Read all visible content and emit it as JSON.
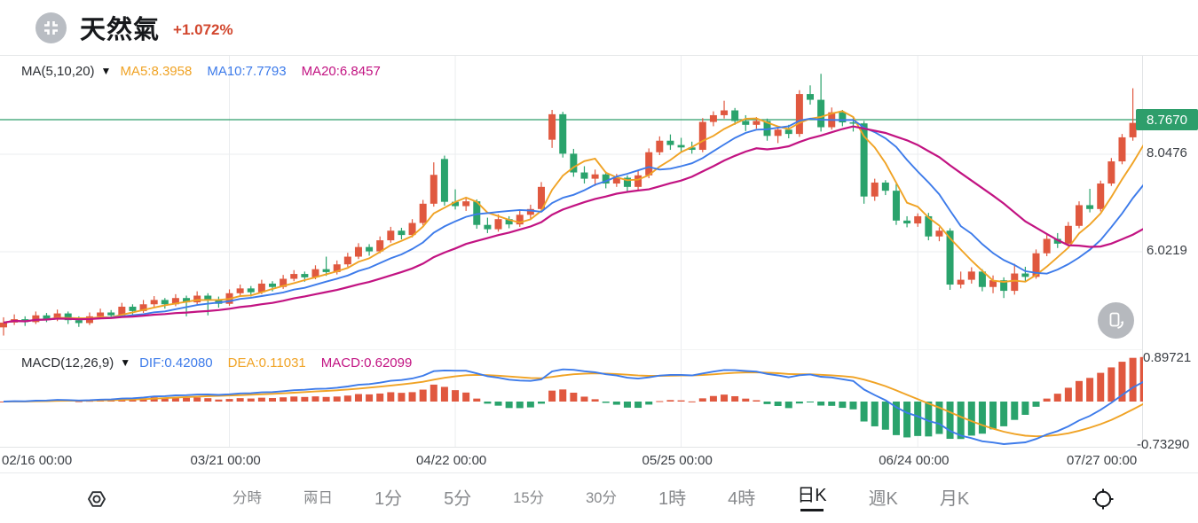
{
  "header": {
    "title": "天然氣",
    "change": "+1.072%",
    "symbol_icon": "crosshair-corners-icon"
  },
  "price_pane": {
    "ma_indicator": {
      "label": "MA(5,10,20)",
      "collapse_icon": "▼",
      "series": [
        {
          "name": "MA5",
          "value": "8.3958",
          "color": "#f0a325"
        },
        {
          "name": "MA10",
          "value": "7.7793",
          "color": "#3d7bea"
        },
        {
          "name": "MA20",
          "value": "6.8457",
          "color": "#c21382"
        }
      ]
    },
    "current_price": {
      "value": "8.7670",
      "badge_color": "#2e9e6b"
    },
    "axis_labels": [
      "8.0476",
      "6.0219"
    ]
  },
  "macd_pane": {
    "label": "MACD(12,26,9)",
    "collapse_icon": "▼",
    "series": [
      {
        "name": "DIF",
        "value": "0.42080",
        "color": "#3d7bea"
      },
      {
        "name": "DEA",
        "value": "0.11031",
        "color": "#f0a325"
      },
      {
        "name": "MACD",
        "value": "0.62099",
        "color": "#c21382"
      }
    ],
    "axis_top": "0.89721",
    "axis_bottom": "-0.73290"
  },
  "x_axis": {
    "labels": [
      "02/16 00:00",
      "03/21 00:00",
      "04/22 00:00",
      "05/25 00:00",
      "06/24 00:00",
      "07/27 00:00"
    ]
  },
  "toolbar": {
    "left_icon": "settings-hex-icon",
    "right_icon": "target-icon",
    "items": [
      {
        "label": "分時",
        "size": "sm",
        "active": false
      },
      {
        "label": "兩日",
        "size": "sm",
        "active": false
      },
      {
        "label": "1分",
        "size": "lg",
        "active": false
      },
      {
        "label": "5分",
        "size": "lg",
        "active": false
      },
      {
        "label": "15分",
        "size": "sm",
        "active": false
      },
      {
        "label": "30分",
        "size": "sm",
        "active": false
      },
      {
        "label": "1時",
        "size": "lg",
        "active": false
      },
      {
        "label": "4時",
        "size": "lg",
        "active": false
      },
      {
        "label": "日K",
        "size": "lg",
        "active": true
      },
      {
        "label": "週K",
        "size": "lg",
        "active": false
      },
      {
        "label": "月K",
        "size": "lg",
        "active": false
      }
    ]
  },
  "colors": {
    "up": "#e0583f",
    "down": "#2aa36c",
    "price_line": "#2e9e6b",
    "ma5": "#f0a325",
    "ma10": "#3d7bea",
    "ma20": "#c21382",
    "grid": "#ebedef",
    "border": "#e2e4e6",
    "change_text": "#d2472e"
  },
  "chart_data": {
    "type": "candlestick",
    "title": "天然氣 daily (日K) candlestick with MA(5,10,20) overlay and MACD(12,26,9) sub-chart",
    "interval": "日K",
    "x_tick_labels": [
      "02/16 00:00",
      "03/21 00:00",
      "04/22 00:00",
      "05/25 00:00",
      "06/24 00:00",
      "07/27 00:00"
    ],
    "x_tick_indices": [
      0,
      21,
      42,
      63,
      85,
      105
    ],
    "price_gridlines": [
      8.0476,
      6.0219
    ],
    "last_price": 8.767,
    "ma_periods": [
      5,
      10,
      20
    ],
    "macd": {
      "params": [
        12,
        26,
        9
      ],
      "dif": 0.4208,
      "dea": 0.11031,
      "macd": 0.62099,
      "range": [
        -0.7329,
        0.89721
      ]
    },
    "ohlc": [
      [
        4.45,
        4.66,
        4.28,
        4.55
      ],
      [
        4.55,
        4.72,
        4.5,
        4.62
      ],
      [
        4.62,
        4.68,
        4.48,
        4.56
      ],
      [
        4.56,
        4.78,
        4.52,
        4.7
      ],
      [
        4.7,
        4.75,
        4.56,
        4.63
      ],
      [
        4.63,
        4.82,
        4.58,
        4.74
      ],
      [
        4.74,
        4.78,
        4.52,
        4.6
      ],
      [
        4.6,
        4.68,
        4.46,
        4.54
      ],
      [
        4.54,
        4.76,
        4.5,
        4.68
      ],
      [
        4.68,
        4.84,
        4.62,
        4.76
      ],
      [
        4.76,
        4.81,
        4.64,
        4.7
      ],
      [
        4.7,
        4.96,
        4.66,
        4.88
      ],
      [
        4.88,
        4.93,
        4.72,
        4.79
      ],
      [
        4.79,
        5.02,
        4.75,
        4.93
      ],
      [
        4.93,
        5.1,
        4.88,
        5.02
      ],
      [
        5.02,
        5.06,
        4.84,
        4.93
      ],
      [
        4.93,
        5.14,
        4.89,
        5.06
      ],
      [
        5.06,
        5.11,
        4.68,
        4.97
      ],
      [
        4.97,
        5.2,
        4.93,
        5.11
      ],
      [
        5.11,
        5.16,
        4.7,
        5.03
      ],
      [
        5.03,
        5.09,
        4.86,
        4.94
      ],
      [
        4.94,
        5.24,
        4.9,
        5.16
      ],
      [
        5.16,
        5.34,
        5.11,
        5.26
      ],
      [
        5.26,
        5.31,
        5.09,
        5.18
      ],
      [
        5.18,
        5.44,
        5.14,
        5.36
      ],
      [
        5.36,
        5.41,
        5.2,
        5.29
      ],
      [
        5.29,
        5.54,
        5.25,
        5.46
      ],
      [
        5.46,
        5.64,
        5.41,
        5.56
      ],
      [
        5.56,
        5.61,
        5.4,
        5.49
      ],
      [
        5.49,
        5.74,
        5.45,
        5.66
      ],
      [
        5.66,
        5.92,
        5.52,
        5.6
      ],
      [
        5.6,
        5.84,
        5.55,
        5.76
      ],
      [
        5.76,
        6.0,
        5.71,
        5.92
      ],
      [
        5.92,
        6.2,
        5.87,
        6.12
      ],
      [
        6.12,
        6.18,
        5.94,
        6.03
      ],
      [
        6.03,
        6.34,
        5.99,
        6.26
      ],
      [
        6.26,
        6.54,
        6.21,
        6.46
      ],
      [
        6.46,
        6.52,
        6.28,
        6.37
      ],
      [
        6.37,
        6.7,
        6.32,
        6.62
      ],
      [
        6.62,
        7.1,
        6.57,
        7.02
      ],
      [
        7.02,
        7.88,
        6.96,
        7.62
      ],
      [
        7.95,
        8.02,
        6.98,
        7.06
      ],
      [
        7.06,
        7.32,
        6.9,
        6.97
      ],
      [
        6.97,
        7.15,
        6.87,
        7.07
      ],
      [
        7.07,
        7.11,
        6.5,
        6.58
      ],
      [
        6.58,
        6.73,
        6.41,
        6.49
      ],
      [
        6.49,
        6.8,
        6.44,
        6.7
      ],
      [
        6.7,
        6.76,
        6.51,
        6.59
      ],
      [
        6.59,
        6.87,
        6.54,
        6.79
      ],
      [
        6.79,
        7.0,
        6.68,
        6.91
      ],
      [
        6.91,
        7.47,
        6.86,
        7.37
      ],
      [
        8.35,
        8.97,
        8.18,
        8.88
      ],
      [
        8.88,
        8.93,
        7.98,
        8.06
      ],
      [
        8.06,
        8.16,
        7.58,
        7.67
      ],
      [
        7.67,
        7.8,
        7.44,
        7.54
      ],
      [
        7.54,
        7.73,
        7.39,
        7.63
      ],
      [
        7.63,
        7.69,
        7.34,
        7.44
      ],
      [
        7.44,
        7.64,
        7.37,
        7.56
      ],
      [
        7.56,
        7.61,
        7.28,
        7.37
      ],
      [
        7.37,
        7.72,
        7.31,
        7.61
      ],
      [
        7.61,
        8.17,
        7.55,
        8.09
      ],
      [
        8.09,
        8.42,
        8.03,
        8.33
      ],
      [
        8.33,
        8.46,
        8.14,
        8.24
      ],
      [
        8.24,
        8.39,
        8.09,
        8.19
      ],
      [
        8.19,
        8.31,
        8.06,
        8.14
      ],
      [
        8.14,
        8.8,
        8.09,
        8.72
      ],
      [
        8.72,
        8.94,
        8.63,
        8.86
      ],
      [
        8.86,
        9.16,
        8.79,
        8.96
      ],
      [
        8.96,
        9.01,
        8.66,
        8.74
      ],
      [
        8.74,
        8.86,
        8.53,
        8.66
      ],
      [
        8.66,
        8.82,
        8.58,
        8.74
      ],
      [
        8.74,
        8.79,
        8.33,
        8.43
      ],
      [
        8.43,
        8.62,
        8.28,
        8.56
      ],
      [
        8.56,
        8.66,
        8.38,
        8.47
      ],
      [
        8.47,
        9.38,
        8.41,
        9.3
      ],
      [
        9.3,
        9.48,
        9.08,
        9.18
      ],
      [
        9.18,
        9.72,
        8.52,
        8.61
      ],
      [
        8.61,
        9.02,
        8.56,
        8.92
      ],
      [
        8.92,
        8.97,
        8.63,
        8.71
      ],
      [
        8.71,
        8.81,
        8.52,
        8.69
      ],
      [
        8.69,
        8.74,
        7.02,
        7.17
      ],
      [
        7.17,
        7.54,
        7.08,
        7.46
      ],
      [
        7.46,
        7.51,
        7.2,
        7.29
      ],
      [
        7.29,
        7.43,
        6.58,
        6.67
      ],
      [
        6.67,
        6.76,
        6.53,
        6.61
      ],
      [
        6.61,
        6.82,
        6.54,
        6.76
      ],
      [
        6.76,
        6.83,
        6.26,
        6.34
      ],
      [
        6.34,
        6.53,
        6.24,
        6.46
      ],
      [
        6.46,
        6.51,
        5.23,
        5.34
      ],
      [
        5.34,
        5.61,
        5.26,
        5.44
      ],
      [
        5.44,
        5.7,
        5.36,
        5.61
      ],
      [
        5.61,
        5.66,
        5.2,
        5.29
      ],
      [
        5.29,
        5.53,
        5.16,
        5.43
      ],
      [
        5.43,
        5.49,
        5.06,
        5.21
      ],
      [
        5.21,
        5.77,
        5.13,
        5.57
      ],
      [
        5.57,
        5.71,
        5.4,
        5.5
      ],
      [
        5.5,
        6.07,
        5.46,
        5.99
      ],
      [
        5.99,
        6.37,
        5.93,
        6.29
      ],
      [
        6.29,
        6.41,
        6.1,
        6.19
      ],
      [
        6.19,
        6.64,
        6.13,
        6.56
      ],
      [
        6.56,
        7.07,
        6.51,
        6.99
      ],
      [
        6.99,
        7.33,
        6.84,
        6.91
      ],
      [
        6.91,
        7.5,
        6.86,
        7.44
      ],
      [
        7.44,
        7.97,
        7.39,
        7.9
      ],
      [
        7.9,
        8.47,
        7.84,
        8.4
      ],
      [
        8.4,
        9.42,
        8.33,
        8.7
      ],
      [
        8.64,
        8.82,
        8.53,
        8.767
      ]
    ]
  }
}
